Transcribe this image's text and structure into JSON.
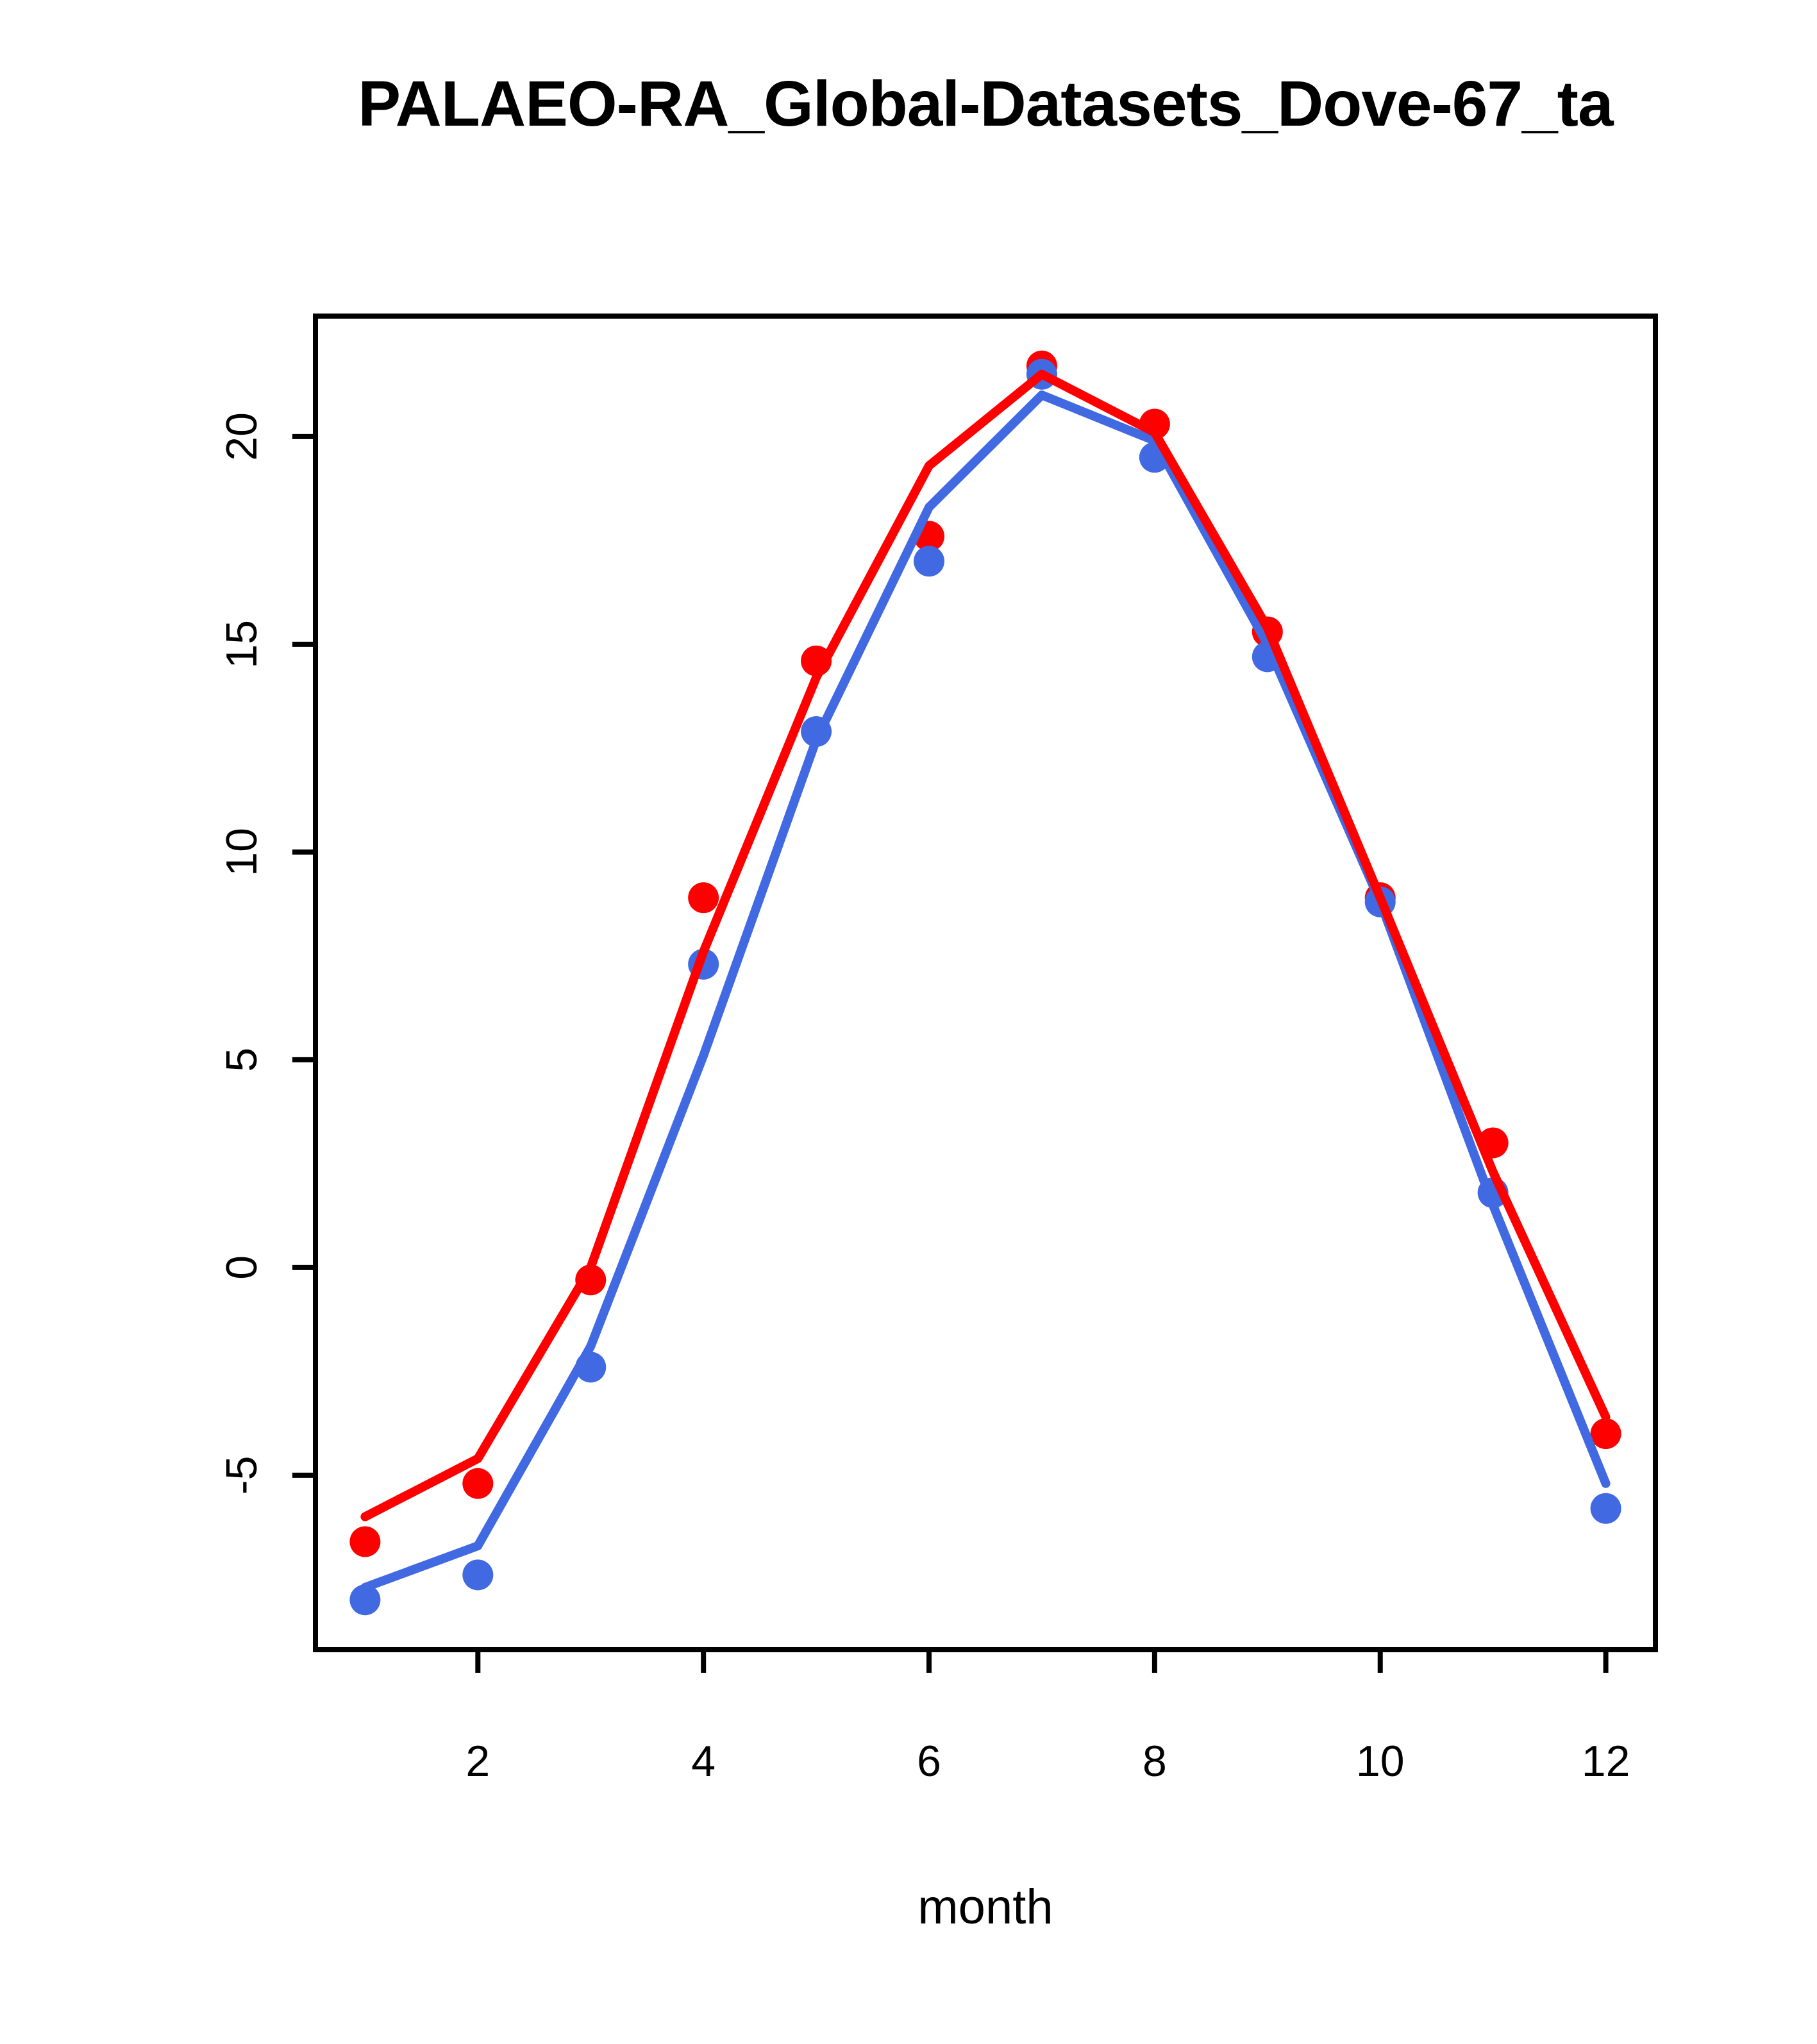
{
  "page": {
    "background": "#ffffff",
    "frame_color": "#000000"
  },
  "chart_data": {
    "type": "line",
    "title": "PALAEO-RA_Global-Datasets_Dove-67_ta",
    "xlabel": "month",
    "ylabel": "",
    "x": [
      1,
      2,
      3,
      4,
      5,
      6,
      7,
      8,
      9,
      10,
      11,
      12
    ],
    "xlim": [
      0.56,
      12.44
    ],
    "ylim": [
      -9.2,
      22.9
    ],
    "xticks": [
      2,
      4,
      6,
      8,
      10,
      12
    ],
    "yticks": [
      -5,
      0,
      5,
      10,
      15,
      20
    ],
    "grid": false,
    "legend": "none",
    "colors": {
      "red": "#ff0000",
      "blue": "#4169e1"
    },
    "series": [
      {
        "name": "red-points",
        "kind": "points",
        "color": "#ff0000",
        "values": [
          -6.6,
          -5.2,
          -0.3,
          8.9,
          14.6,
          17.6,
          21.7,
          20.3,
          15.3,
          8.9,
          3.0,
          -4.0
        ]
      },
      {
        "name": "blue-points",
        "kind": "points",
        "color": "#4169e1",
        "values": [
          -8.0,
          -7.4,
          -2.4,
          7.3,
          12.9,
          17.0,
          21.5,
          19.5,
          14.7,
          8.8,
          1.8,
          -5.8
        ]
      },
      {
        "name": "blue-line",
        "kind": "line",
        "color": "#4169e1",
        "values": [
          -7.7,
          -6.7,
          -1.9,
          5.1,
          12.7,
          18.3,
          21.0,
          19.9,
          15.0,
          8.8,
          1.5,
          -5.2
        ]
      },
      {
        "name": "red-line",
        "kind": "line",
        "color": "#ff0000",
        "values": [
          -6.0,
          -4.6,
          0.0,
          7.6,
          14.2,
          19.3,
          21.5,
          20.1,
          15.4,
          8.9,
          2.3,
          -3.6
        ]
      }
    ]
  }
}
